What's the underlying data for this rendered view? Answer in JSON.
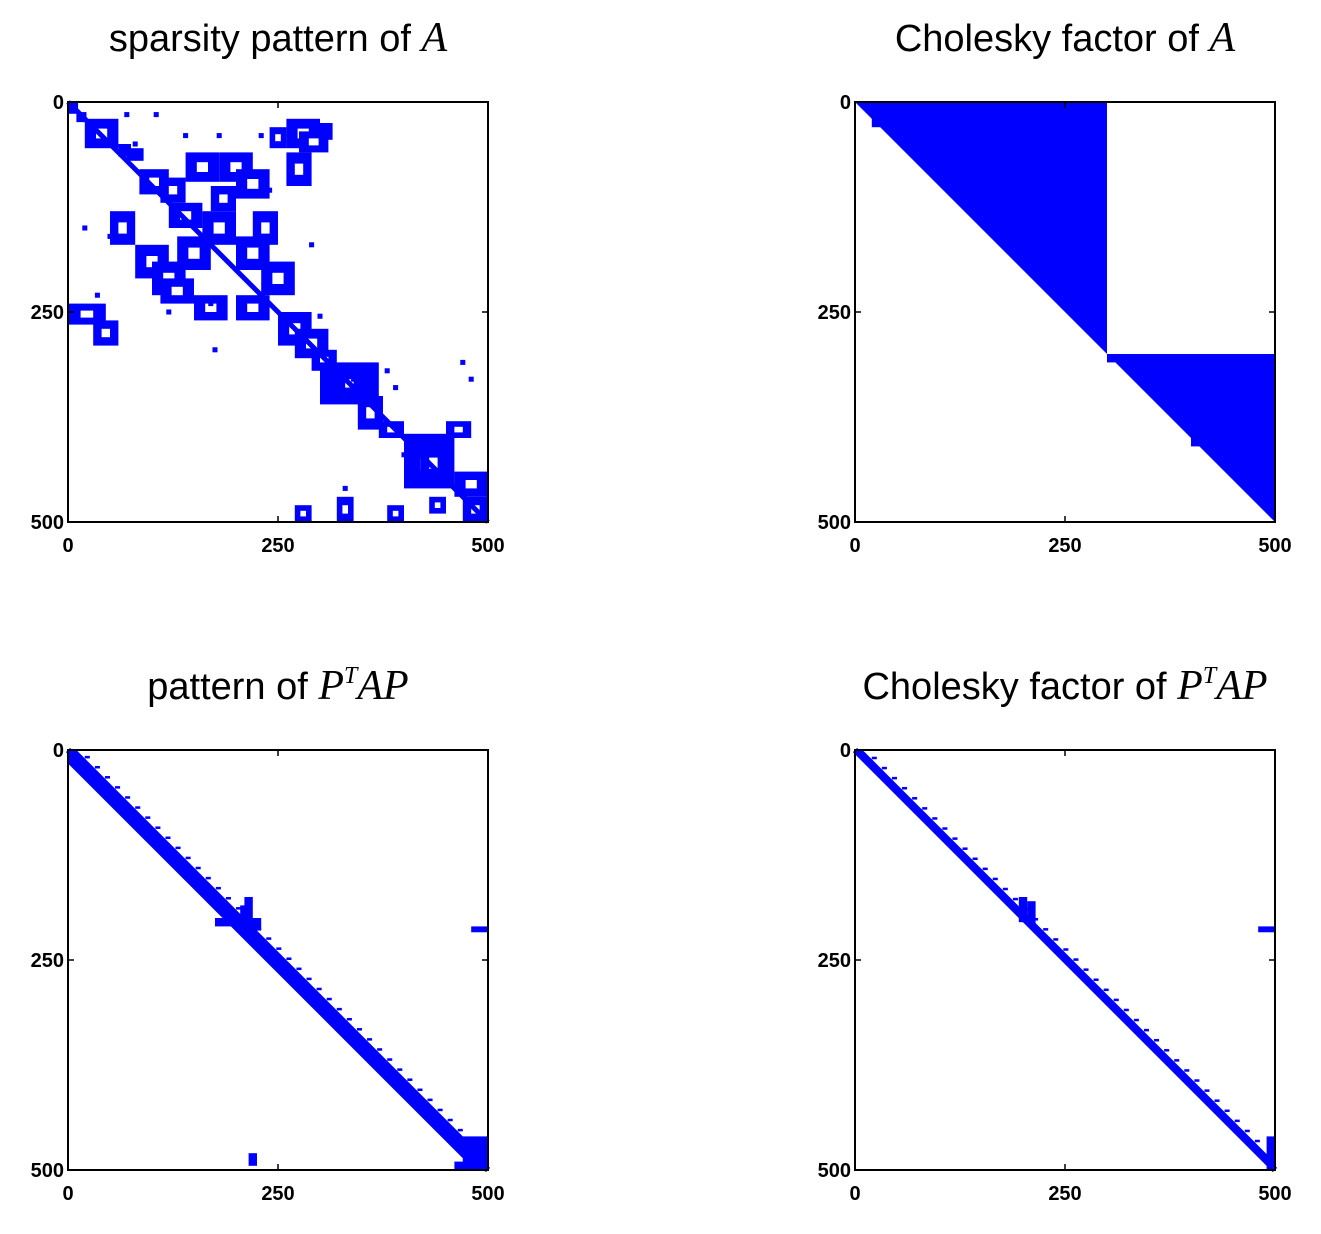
{
  "chart_data": [
    {
      "type": "spy",
      "title_text": "sparsity pattern of ",
      "title_math": "A",
      "xlim": [
        0,
        500
      ],
      "ylim": [
        0,
        500
      ],
      "xticks": [
        0,
        250,
        500
      ],
      "yticks": [
        0,
        250,
        500
      ],
      "marker_color": "#0000ff",
      "rects": [
        [
          0,
          0,
          12,
          14
        ],
        [
          10,
          12,
          22,
          24
        ],
        [
          20,
          20,
          60,
          55
        ],
        [
          60,
          50,
          75,
          65
        ],
        [
          70,
          55,
          90,
          70
        ],
        [
          85,
          80,
          120,
          110
        ],
        [
          110,
          90,
          140,
          120
        ],
        [
          120,
          120,
          160,
          150
        ],
        [
          140,
          60,
          180,
          95
        ],
        [
          180,
          60,
          220,
          95
        ],
        [
          200,
          80,
          240,
          115
        ],
        [
          170,
          100,
          200,
          130
        ],
        [
          50,
          130,
          80,
          170
        ],
        [
          80,
          170,
          120,
          210
        ],
        [
          100,
          190,
          140,
          230
        ],
        [
          130,
          160,
          170,
          200
        ],
        [
          160,
          130,
          200,
          170
        ],
        [
          200,
          160,
          240,
          200
        ],
        [
          220,
          130,
          250,
          170
        ],
        [
          230,
          190,
          270,
          230
        ],
        [
          110,
          210,
          150,
          240
        ],
        [
          150,
          230,
          190,
          260
        ],
        [
          200,
          230,
          240,
          260
        ],
        [
          260,
          60,
          290,
          100
        ],
        [
          240,
          30,
          260,
          55
        ],
        [
          260,
          20,
          300,
          55
        ],
        [
          275,
          35,
          310,
          60
        ],
        [
          300,
          25,
          315,
          45
        ],
        [
          0,
          240,
          45,
          265
        ],
        [
          30,
          260,
          60,
          290
        ],
        [
          250,
          250,
          290,
          290
        ],
        [
          270,
          270,
          310,
          305
        ],
        [
          290,
          295,
          320,
          320
        ],
        [
          300,
          310,
          370,
          360
        ],
        [
          320,
          320,
          350,
          350
        ],
        [
          345,
          350,
          375,
          390
        ],
        [
          370,
          380,
          400,
          400
        ],
        [
          400,
          395,
          460,
          460
        ],
        [
          420,
          410,
          450,
          450
        ],
        [
          450,
          380,
          480,
          400
        ],
        [
          460,
          440,
          500,
          470
        ],
        [
          470,
          470,
          500,
          500
        ],
        [
          430,
          470,
          450,
          490
        ],
        [
          380,
          480,
          400,
          500
        ],
        [
          270,
          480,
          290,
          500
        ],
        [
          320,
          470,
          340,
          500
        ]
      ],
      "dots": [
        [
          70,
          15
        ],
        [
          105,
          15
        ],
        [
          80,
          50
        ],
        [
          140,
          40
        ],
        [
          180,
          40
        ],
        [
          230,
          40
        ],
        [
          100,
          85
        ],
        [
          240,
          105
        ],
        [
          20,
          150
        ],
        [
          50,
          160
        ],
        [
          85,
          190
        ],
        [
          290,
          170
        ],
        [
          240,
          200
        ],
        [
          35,
          230
        ],
        [
          120,
          250
        ],
        [
          170,
          240
        ],
        [
          220,
          255
        ],
        [
          175,
          295
        ],
        [
          300,
          255
        ],
        [
          340,
          330
        ],
        [
          380,
          320
        ],
        [
          390,
          340
        ],
        [
          400,
          420
        ],
        [
          330,
          460
        ],
        [
          470,
          310
        ],
        [
          480,
          330
        ]
      ]
    },
    {
      "type": "spy",
      "title_text": "Cholesky factor of ",
      "title_math": "A",
      "xlim": [
        0,
        500
      ],
      "ylim": [
        0,
        500
      ],
      "xticks": [
        0,
        250,
        500
      ],
      "yticks": [
        0,
        250,
        500
      ],
      "marker_color": "#0000ff",
      "polys": [
        [
          [
            0,
            0
          ],
          [
            300,
            300
          ],
          [
            300,
            0
          ]
        ],
        [
          [
            300,
            300
          ],
          [
            500,
            500
          ],
          [
            500,
            300
          ]
        ]
      ],
      "blanks": [
        [
          0,
          0,
          300,
          10
        ],
        [
          0,
          10,
          15,
          300
        ],
        [
          40,
          10,
          100,
          40
        ],
        [
          100,
          10,
          150,
          60
        ],
        [
          150,
          10,
          230,
          45
        ],
        [
          240,
          10,
          250,
          45
        ],
        [
          120,
          50,
          140,
          70
        ],
        [
          300,
          0,
          500,
          300
        ],
        [
          160,
          75,
          180,
          85
        ],
        [
          210,
          75,
          230,
          85
        ],
        [
          300,
          300,
          500,
          310
        ],
        [
          360,
          300,
          400,
          350
        ],
        [
          410,
          300,
          460,
          360
        ],
        [
          465,
          300,
          470,
          320
        ],
        [
          420,
          395,
          500,
          400
        ],
        [
          440,
          395,
          460,
          400
        ]
      ],
      "fills": [
        [
          20,
          10,
          40,
          30
        ],
        [
          55,
          10,
          65,
          50
        ],
        [
          95,
          30,
          100,
          60
        ],
        [
          140,
          20,
          145,
          65
        ],
        [
          175,
          40,
          200,
          75
        ],
        [
          180,
          10,
          185,
          50
        ],
        [
          235,
          15,
          245,
          75
        ],
        [
          245,
          15,
          255,
          80
        ],
        [
          255,
          15,
          270,
          60
        ],
        [
          270,
          15,
          300,
          40
        ],
        [
          280,
          35,
          300,
          70
        ],
        [
          140,
          65,
          300,
          75
        ],
        [
          200,
          85,
          300,
          100
        ],
        [
          300,
          300,
          340,
          310
        ],
        [
          340,
          300,
          360,
          325
        ],
        [
          400,
          300,
          410,
          370
        ],
        [
          460,
          300,
          470,
          375
        ],
        [
          480,
          300,
          490,
          380
        ],
        [
          495,
          300,
          500,
          370
        ],
        [
          395,
          370,
          500,
          395
        ],
        [
          400,
          400,
          500,
          410
        ]
      ]
    },
    {
      "type": "spy",
      "title_text": "pattern of ",
      "title_math": "AP",
      "title_sup": "T",
      "title_pre_math": "P",
      "xlim": [
        0,
        500
      ],
      "ylim": [
        0,
        500
      ],
      "xticks": [
        0,
        250,
        500
      ],
      "yticks": [
        0,
        250,
        500
      ],
      "marker_color": "#0000ff",
      "band_lower": 16,
      "band_upper": 10,
      "extra_rects": [
        [
          175,
          200,
          215,
          210
        ],
        [
          205,
          185,
          215,
          210
        ],
        [
          210,
          175,
          220,
          215
        ],
        [
          210,
          200,
          230,
          215
        ],
        [
          480,
          210,
          500,
          217
        ],
        [
          215,
          480,
          225,
          495
        ],
        [
          470,
          460,
          500,
          500
        ],
        [
          460,
          490,
          480,
          500
        ]
      ]
    },
    {
      "type": "spy",
      "title_text": "Cholesky factor of ",
      "title_math": "AP",
      "title_sup": "T",
      "title_pre_math": "P",
      "xlim": [
        0,
        500
      ],
      "ylim": [
        0,
        500
      ],
      "xticks": [
        0,
        250,
        500
      ],
      "yticks": [
        0,
        250,
        500
      ],
      "marker_color": "#0000ff",
      "band_lower": 0,
      "band_upper": 9,
      "extra_rects": [
        [
          195,
          175,
          205,
          205
        ],
        [
          205,
          180,
          215,
          210
        ],
        [
          480,
          210,
          500,
          217
        ],
        [
          490,
          460,
          500,
          500
        ]
      ]
    }
  ]
}
